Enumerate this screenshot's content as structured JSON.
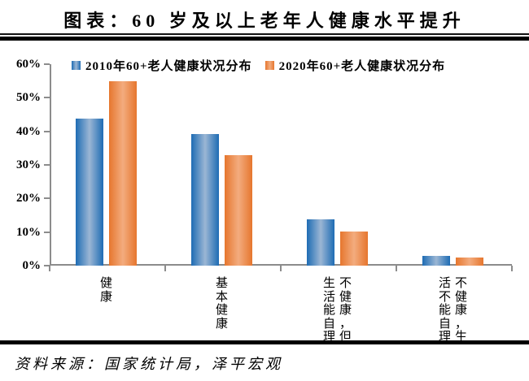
{
  "title": "图表：60 岁及以上老年人健康水平提升",
  "source": "资料来源：国家统计局，泽平宏观",
  "colors": {
    "background": "#ffffff",
    "axis": "#8c8c8c",
    "rule": "#000000",
    "series_2010_edge": "#1E6CB4",
    "series_2010_mid": "#9BB6D4",
    "series_2020_edge": "#E6762E",
    "series_2020_mid": "#F3AC7E"
  },
  "chart_data": {
    "type": "bar",
    "title": "图表：60 岁及以上老年人健康水平提升",
    "categories": [
      "健康",
      "基本健康",
      "不健康，但生活能自理",
      "不健康，生活不能自理"
    ],
    "series": [
      {
        "name": "2010年60+老人健康状况分布",
        "values": [
          43.8,
          39.3,
          13.9,
          2.9
        ],
        "edge_color": "#1E6CB4",
        "mid_color": "#9BB6D4"
      },
      {
        "name": "2020年60+老人健康状况分布",
        "values": [
          54.8,
          32.8,
          10.2,
          2.3
        ],
        "edge_color": "#E6762E",
        "mid_color": "#F3AC7E"
      }
    ],
    "xlabel": "",
    "ylabel": "",
    "ylim": [
      0,
      60
    ],
    "y_tick_labels": [
      "0%",
      "10%",
      "20%",
      "30%",
      "40%",
      "50%",
      "60%"
    ],
    "grid": false,
    "legend_position": "top-left-inside"
  }
}
